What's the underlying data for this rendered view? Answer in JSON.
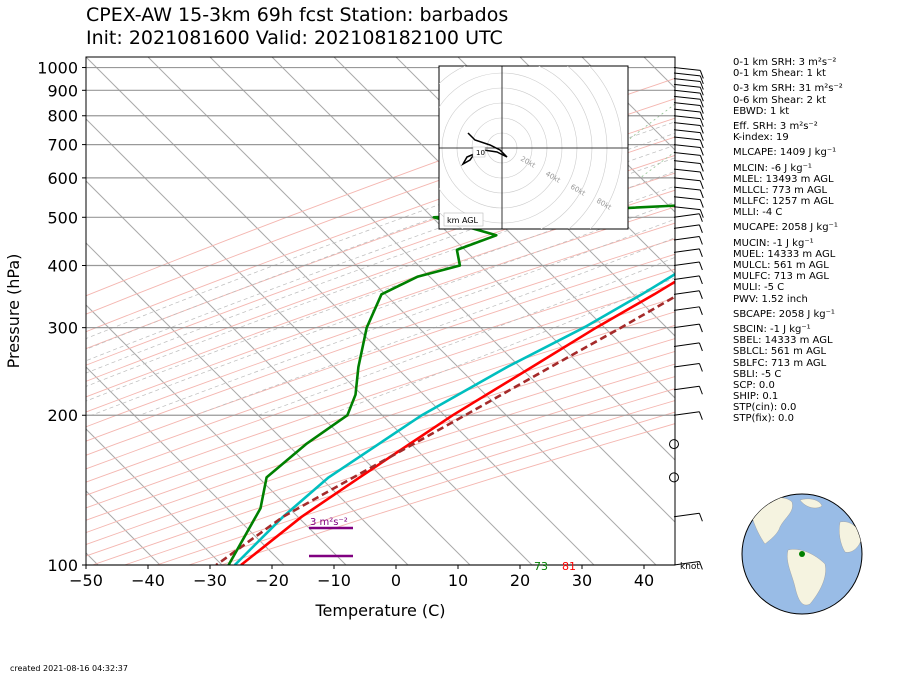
{
  "title_line1": "CPEX-AW 15-3km  69h fcst  Station: barbados",
  "title_line2": "Init: 2021081600  Valid: 202108182100 UTC",
  "created": "created 2021-08-16 04:32:37",
  "knot_label": "knot",
  "stats": [
    "0-1 km SRH: 3 m²s⁻²",
    "0-1 km Shear: 1 kt",
    "0-3 km SRH: 31 m²s⁻²",
    "0-6 km Shear: 2 kt",
    "EBWD: 1 kt",
    "Eff. SRH: 3 m²s⁻²",
    "K-index: 19",
    "MLCAPE: 1409 J kg⁻¹",
    "MLCIN: -6 J kg⁻¹",
    "MLEL: 13493 m AGL",
    "MLLCL: 773 m AGL",
    "MLLFC: 1257 m AGL",
    "MLLI: -4 C",
    "MUCAPE: 2058 J kg⁻¹",
    "MUCIN: -1 J kg⁻¹",
    "MUEL: 14333 m AGL",
    "MULCL: 561 m AGL",
    "MULFC: 713 m AGL",
    "MULI: -5 C",
    "PWV: 1.52 inch",
    "SBCAPE: 2058 J kg⁻¹",
    "SBCIN: -1 J kg⁻¹",
    "SBEL: 14333 m AGL",
    "SBLCL: 561 m AGL",
    "SBLFC: 713 m AGL",
    "SBLI: -5 C",
    "SCP: 0.0",
    "SHIP: 0.1",
    "STP(cin): 0.0",
    "STP(fix): 0.0"
  ],
  "chart_data": {
    "type": "line",
    "subtype": "skew-T log-p",
    "xlabel": "Temperature (C)",
    "ylabel": "Pressure (hPa)",
    "xlim": [
      -50,
      45
    ],
    "ylim_hpa": [
      1050,
      100
    ],
    "x_ticks": [
      -50,
      -40,
      -30,
      -20,
      -10,
      0,
      10,
      20,
      30,
      40
    ],
    "y_ticks": [
      100,
      200,
      300,
      400,
      500,
      600,
      700,
      800,
      900,
      1000
    ],
    "grid": true,
    "surface_labels": {
      "dewpoint": "73",
      "temperature": "81"
    },
    "srh_labels": [
      "3 m²s⁻²"
    ],
    "series": [
      {
        "name": "temperature",
        "color": "#ff0000",
        "points": [
          [
            28,
            1000
          ],
          [
            25,
            950
          ],
          [
            23.5,
            900
          ],
          [
            20,
            850
          ],
          [
            17,
            800
          ],
          [
            16,
            750
          ],
          [
            13,
            700
          ],
          [
            11,
            650
          ],
          [
            8,
            600
          ],
          [
            7,
            550
          ],
          [
            7,
            500
          ],
          [
            4,
            450
          ],
          [
            1,
            400
          ],
          [
            -2,
            350
          ],
          [
            -6,
            300
          ],
          [
            -10,
            250
          ],
          [
            -15,
            200
          ],
          [
            -20,
            150
          ],
          [
            -23,
            125
          ],
          [
            -25,
            100
          ]
        ]
      },
      {
        "name": "dewpoint",
        "color": "#00bfbf",
        "points": [
          [
            25,
            1000
          ],
          [
            23,
            950
          ],
          [
            19,
            900
          ],
          [
            16,
            850
          ],
          [
            14,
            800
          ],
          [
            11,
            750
          ],
          [
            8,
            700
          ],
          [
            6.5,
            650
          ],
          [
            4,
            600
          ],
          [
            2,
            550
          ],
          [
            1,
            500
          ],
          [
            0,
            450
          ],
          [
            -1,
            400
          ],
          [
            -4,
            350
          ],
          [
            -8,
            300
          ],
          [
            -14,
            250
          ],
          [
            -20,
            200
          ],
          [
            -25,
            150
          ],
          [
            -26,
            125
          ],
          [
            -26,
            100
          ]
        ]
      },
      {
        "name": "parcel",
        "color": "#a52a2a",
        "style": "dashed",
        "points": [
          [
            31,
            1000
          ],
          [
            28,
            950
          ],
          [
            26,
            900
          ],
          [
            24,
            850
          ],
          [
            22,
            800
          ],
          [
            20,
            750
          ],
          [
            18.5,
            700
          ],
          [
            16,
            650
          ],
          [
            14,
            600
          ],
          [
            12,
            550
          ],
          [
            10,
            500
          ],
          [
            7.5,
            450
          ],
          [
            5,
            400
          ],
          [
            2,
            350
          ],
          [
            -2,
            300
          ],
          [
            -7,
            250
          ],
          [
            -13,
            200
          ],
          [
            -21,
            150
          ],
          [
            -26,
            125
          ],
          [
            -29,
            100
          ]
        ]
      },
      {
        "name": "rh",
        "color": "#008000",
        "points": [
          [
            23,
            1000
          ],
          [
            22,
            950
          ],
          [
            20,
            900
          ],
          [
            17,
            850
          ],
          [
            13,
            800
          ],
          [
            7,
            750
          ],
          [
            -1,
            700
          ],
          [
            -1,
            680
          ],
          [
            -2,
            650
          ],
          [
            -1,
            600
          ],
          [
            -7,
            560
          ],
          [
            -10,
            530
          ],
          [
            -50,
            500
          ],
          [
            -37,
            460
          ],
          [
            -41,
            430
          ],
          [
            -38,
            400
          ],
          [
            -43,
            380
          ],
          [
            -46,
            350
          ],
          [
            -43,
            300
          ],
          [
            -38,
            250
          ],
          [
            -34,
            220
          ],
          [
            -32,
            200
          ],
          [
            -34,
            175
          ],
          [
            -35,
            150
          ],
          [
            -31,
            130
          ],
          [
            -27,
            100
          ]
        ]
      }
    ]
  }
}
